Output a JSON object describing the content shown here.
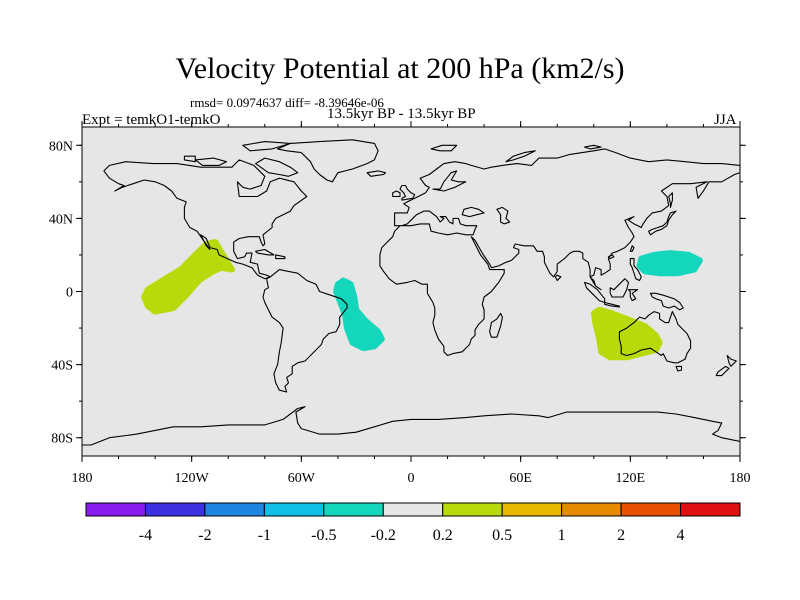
{
  "title": "Velocity Potential at 200 hPa (km2/s)",
  "stats": "rmsd= 0.0974637 diff= -8.39646e-06",
  "experiment": "Expt = temkO1-temkO",
  "period": "13.5kyr BP - 13.5kyr BP",
  "season": "JJA",
  "map": {
    "lon_range": [
      -180,
      180
    ],
    "lat_range": [
      -90,
      90
    ],
    "background_color": "#e6e6e6",
    "x_ticks": [
      {
        "lon": -180,
        "label": "180"
      },
      {
        "lon": -120,
        "label": "120W"
      },
      {
        "lon": -60,
        "label": "60W"
      },
      {
        "lon": 0,
        "label": "0"
      },
      {
        "lon": 60,
        "label": "60E"
      },
      {
        "lon": 120,
        "label": "120E"
      },
      {
        "lon": 180,
        "label": "180"
      }
    ],
    "y_ticks": [
      {
        "lat": 80,
        "label": "80N"
      },
      {
        "lat": 40,
        "label": "40N"
      },
      {
        "lat": 0,
        "label": "0"
      },
      {
        "lat": -40,
        "label": "40S"
      },
      {
        "lat": -80,
        "label": "80S"
      }
    ],
    "anomaly_regions": [
      {
        "name": "east-pacific",
        "value_class": "0.2 to 0.5",
        "color": "#b9d90b",
        "outline": [
          [
            -144,
            -8
          ],
          [
            -140,
            -11
          ],
          [
            -130,
            -9
          ],
          [
            -123,
            -2
          ],
          [
            -116,
            6
          ],
          [
            -110,
            10
          ],
          [
            -104,
            13
          ],
          [
            -98,
            12
          ],
          [
            -104,
            22
          ],
          [
            -107,
            27
          ],
          [
            -112,
            26
          ],
          [
            -118,
            20
          ],
          [
            -126,
            12
          ],
          [
            -136,
            6
          ],
          [
            -144,
            1
          ],
          [
            -146,
            -3
          ]
        ]
      },
      {
        "name": "south-atlantic",
        "value_class": "-0.5 to -0.2",
        "color": "#14d6bd",
        "outline": [
          [
            -40,
            4
          ],
          [
            -37,
            6
          ],
          [
            -33,
            4
          ],
          [
            -31,
            -3
          ],
          [
            -30,
            -10
          ],
          [
            -25,
            -16
          ],
          [
            -18,
            -22
          ],
          [
            -16,
            -26
          ],
          [
            -20,
            -30
          ],
          [
            -26,
            -31
          ],
          [
            -32,
            -28
          ],
          [
            -35,
            -20
          ],
          [
            -36,
            -13
          ],
          [
            -39,
            -5
          ],
          [
            -41,
            0
          ]
        ]
      },
      {
        "name": "australia",
        "value_class": "0.2 to 0.5",
        "color": "#b9d90b",
        "outline": [
          [
            100,
            -12
          ],
          [
            103,
            -10
          ],
          [
            110,
            -12
          ],
          [
            118,
            -15
          ],
          [
            128,
            -19
          ],
          [
            134,
            -24
          ],
          [
            136,
            -28
          ],
          [
            134,
            -32
          ],
          [
            126,
            -34
          ],
          [
            118,
            -36
          ],
          [
            109,
            -36
          ],
          [
            104,
            -33
          ],
          [
            103,
            -26
          ],
          [
            101,
            -18
          ]
        ]
      },
      {
        "name": "west-pacific",
        "value_class": "-0.5 to -0.2",
        "color": "#14d6bd",
        "outline": [
          [
            126,
            18
          ],
          [
            133,
            20
          ],
          [
            142,
            21
          ],
          [
            152,
            20
          ],
          [
            158,
            17
          ],
          [
            155,
            12
          ],
          [
            146,
            10
          ],
          [
            136,
            10
          ],
          [
            128,
            11
          ],
          [
            125,
            14
          ]
        ]
      }
    ]
  },
  "colorbar": {
    "colors": [
      "#8a1cf0",
      "#3c32e0",
      "#1c86e0",
      "#10bfe6",
      "#14d6bd",
      "#e6e6e6",
      "#b9d90b",
      "#e8b800",
      "#e88a00",
      "#e65000",
      "#e01010"
    ],
    "labels": [
      "-4",
      "-2",
      "-1",
      "-0.5",
      "-0.2",
      "0.2",
      "0.5",
      "1",
      "2",
      "4"
    ]
  }
}
